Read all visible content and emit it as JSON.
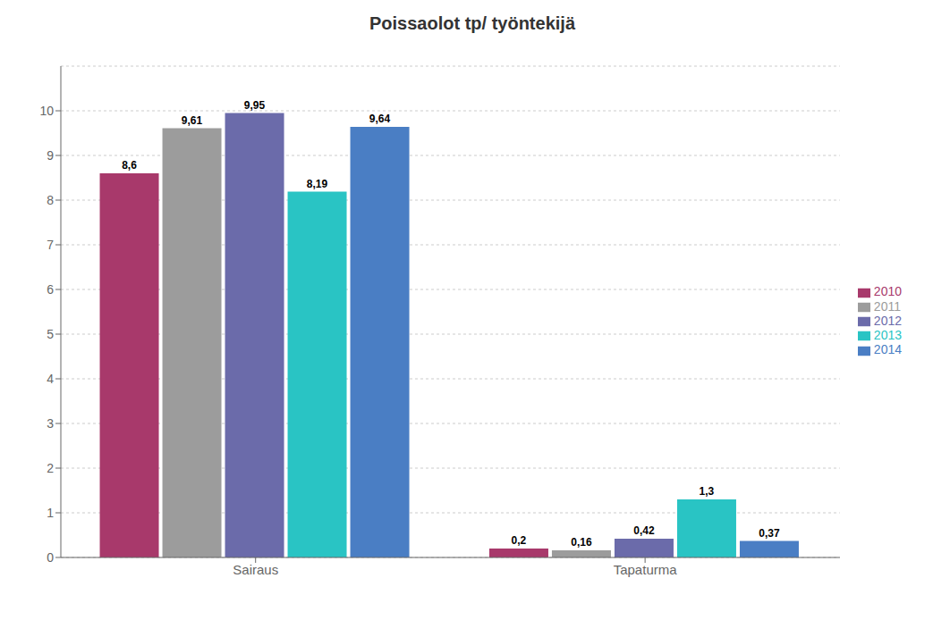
{
  "chart_data": {
    "type": "bar",
    "title": "Poissaolot tp/ työntekijä",
    "categories": [
      "Sairaus",
      "Tapaturma"
    ],
    "series": [
      {
        "name": "2010",
        "color": "#a8396b",
        "values": [
          8.6,
          0.2
        ],
        "value_labels": [
          "8,6",
          "0,2"
        ]
      },
      {
        "name": "2011",
        "color": "#9c9c9c",
        "values": [
          9.61,
          0.16
        ],
        "value_labels": [
          "9,61",
          "0,16"
        ]
      },
      {
        "name": "2012",
        "color": "#6b6baa",
        "values": [
          9.95,
          0.42
        ],
        "value_labels": [
          "9,95",
          "0,42"
        ]
      },
      {
        "name": "2013",
        "color": "#29c4c4",
        "values": [
          8.19,
          1.3
        ],
        "value_labels": [
          "8,19",
          "1,3"
        ]
      },
      {
        "name": "2014",
        "color": "#4a7ec4",
        "values": [
          9.64,
          0.37
        ],
        "value_labels": [
          "9,64",
          "0,37"
        ]
      }
    ],
    "ylim": [
      0,
      11
    ],
    "yticks": [
      0,
      1,
      2,
      3,
      4,
      5,
      6,
      7,
      8,
      9,
      10
    ],
    "grid": true,
    "legend": "right",
    "data_labels": true
  }
}
